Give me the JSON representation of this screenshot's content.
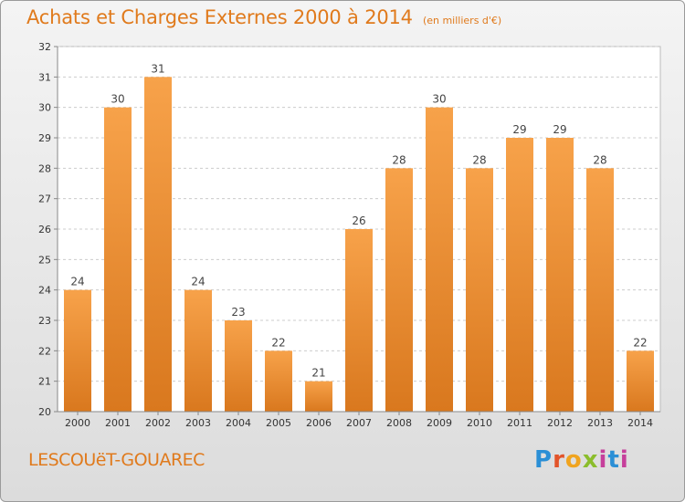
{
  "header": {
    "title": "Achats et Charges Externes 2000 à 2014",
    "subtitle": "(en milliers d'€)"
  },
  "footer": {
    "place": "LESCOUëT-GOUAREC",
    "logo_text": "Proxiti"
  },
  "colors": {
    "accent": "#e07a1c",
    "bar_top": "#f7a24a",
    "bar_bottom": "#d9781e",
    "plot_bg": "#ffffff",
    "grid": "#cccccc"
  },
  "chart_data": {
    "type": "bar",
    "title": "Achats et Charges Externes 2000 à 2014",
    "subtitle": "(en milliers d'€)",
    "xlabel": "",
    "ylabel": "",
    "categories": [
      "2000",
      "2001",
      "2002",
      "2003",
      "2004",
      "2005",
      "2006",
      "2007",
      "2008",
      "2009",
      "2010",
      "2011",
      "2012",
      "2013",
      "2014"
    ],
    "values": [
      24,
      30,
      31,
      24,
      23,
      22,
      21,
      26,
      28,
      30,
      28,
      29,
      29,
      28,
      22
    ],
    "ylim": [
      20,
      32
    ],
    "yticks": [
      20,
      21,
      22,
      23,
      24,
      25,
      26,
      27,
      28,
      29,
      30,
      31,
      32
    ],
    "grid": true,
    "data_labels": true
  }
}
